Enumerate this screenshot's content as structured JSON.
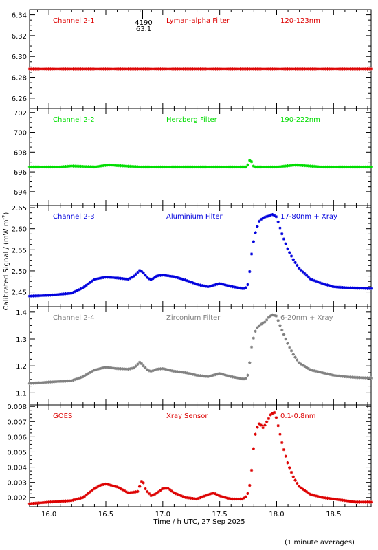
{
  "figure": {
    "ylabel": "Calibrated Signal / (mW m",
    "ylabel_sup": "-2",
    "ylabel_end": ")",
    "xlabel": "Time / h UTC, 27 Sep 2025",
    "footnote": "(1 minute averages)"
  },
  "chart_data": [
    {
      "type": "scatter",
      "channel_label": "Channel 2-1",
      "filter_label": "Lyman-alpha Filter",
      "range_label": "120-123nm",
      "color": "#dd0000",
      "xlim": [
        15.83,
        18.83
      ],
      "ylim": [
        6.25,
        6.345
      ],
      "yticks": [
        6.26,
        6.28,
        6.3,
        6.32,
        6.34
      ],
      "ytick_labels": [
        "6.26",
        "6.28",
        "6.30",
        "6.32",
        "6.34"
      ],
      "outlier_x": 16.82,
      "outlier_labels": [
        "4190",
        "63.1"
      ],
      "series": [
        {
          "x": [
            15.83,
            18.83
          ],
          "y": [
            6.288,
            6.288
          ]
        }
      ]
    },
    {
      "type": "scatter",
      "channel_label": "Channel 2-2",
      "filter_label": "Herzberg Filter",
      "range_label": "190-222nm",
      "color": "#00dd00",
      "xlim": [
        15.83,
        18.83
      ],
      "ylim": [
        692.6,
        702.4
      ],
      "yticks": [
        694,
        696,
        698,
        700,
        702
      ],
      "ytick_labels": [
        "694",
        "696",
        "698",
        "700",
        "702"
      ],
      "series": [
        {
          "x": [
            15.83,
            16.1,
            16.2,
            16.4,
            16.52,
            16.8,
            17.2,
            17.6,
            17.74,
            17.76,
            17.77,
            17.8,
            18.0,
            18.17,
            18.4,
            18.83
          ],
          "y": [
            696.5,
            696.5,
            696.6,
            696.5,
            696.7,
            696.5,
            696.5,
            696.5,
            696.5,
            697.1,
            697.3,
            696.5,
            696.5,
            696.7,
            696.5,
            696.5
          ]
        }
      ]
    },
    {
      "type": "scatter",
      "channel_label": "Channel 2-3",
      "filter_label": "Aluminium Filter",
      "range_label": "17-80nm + Xray",
      "color": "#0000dd",
      "xlim": [
        15.83,
        18.83
      ],
      "ylim": [
        2.415,
        2.655
      ],
      "yticks": [
        2.45,
        2.5,
        2.55,
        2.6,
        2.65
      ],
      "ytick_labels": [
        "2.45",
        "2.50",
        "2.55",
        "2.60",
        "2.65"
      ],
      "series": [
        {
          "x": [
            15.83,
            16.0,
            16.2,
            16.3,
            16.4,
            16.5,
            16.6,
            16.7,
            16.75,
            16.8,
            16.83,
            16.87,
            16.9,
            16.95,
            17.0,
            17.1,
            17.2,
            17.3,
            17.4,
            17.5,
            17.6,
            17.7,
            17.72,
            17.74,
            17.75,
            17.76,
            17.78,
            17.8,
            17.82,
            17.85,
            17.88,
            17.9,
            17.93,
            17.96,
            18.0,
            18.02,
            18.05,
            18.1,
            18.15,
            18.2,
            18.3,
            18.4,
            18.5,
            18.6,
            18.7,
            18.83
          ],
          "y": [
            2.44,
            2.442,
            2.447,
            2.46,
            2.48,
            2.485,
            2.483,
            2.48,
            2.488,
            2.502,
            2.495,
            2.482,
            2.479,
            2.488,
            2.49,
            2.486,
            2.478,
            2.468,
            2.462,
            2.47,
            2.463,
            2.458,
            2.458,
            2.462,
            2.47,
            2.49,
            2.54,
            2.575,
            2.598,
            2.62,
            2.625,
            2.628,
            2.63,
            2.634,
            2.628,
            2.61,
            2.585,
            2.55,
            2.525,
            2.505,
            2.48,
            2.47,
            2.462,
            2.46,
            2.459,
            2.458
          ]
        }
      ]
    },
    {
      "type": "scatter",
      "channel_label": "Channel 2-4",
      "filter_label": "Zirconium Filter",
      "range_label": "6-20nm + Xray",
      "color": "#808080",
      "xlim": [
        15.83,
        18.83
      ],
      "ylim": [
        1.055,
        1.42
      ],
      "yticks": [
        1.1,
        1.2,
        1.3,
        1.4
      ],
      "ytick_labels": [
        "1.1",
        "1.2",
        "1.3",
        "1.4"
      ],
      "series": [
        {
          "x": [
            15.83,
            16.0,
            16.2,
            16.3,
            16.4,
            16.5,
            16.6,
            16.7,
            16.75,
            16.8,
            16.83,
            16.87,
            16.9,
            16.95,
            17.0,
            17.1,
            17.2,
            17.3,
            17.4,
            17.5,
            17.6,
            17.7,
            17.72,
            17.74,
            17.75,
            17.76,
            17.78,
            17.8,
            17.82,
            17.85,
            17.88,
            17.9,
            17.93,
            17.96,
            18.0,
            18.02,
            18.05,
            18.1,
            18.15,
            18.2,
            18.3,
            18.4,
            18.5,
            18.6,
            18.7,
            18.83
          ],
          "y": [
            1.135,
            1.14,
            1.145,
            1.16,
            1.185,
            1.195,
            1.19,
            1.188,
            1.193,
            1.215,
            1.2,
            1.183,
            1.18,
            1.188,
            1.19,
            1.18,
            1.175,
            1.165,
            1.16,
            1.172,
            1.16,
            1.152,
            1.152,
            1.156,
            1.17,
            1.2,
            1.27,
            1.31,
            1.338,
            1.35,
            1.36,
            1.363,
            1.38,
            1.39,
            1.385,
            1.36,
            1.33,
            1.28,
            1.24,
            1.21,
            1.185,
            1.175,
            1.165,
            1.16,
            1.157,
            1.155
          ]
        }
      ]
    },
    {
      "type": "scatter",
      "channel_label": "GOES",
      "filter_label": "Xray Sensor",
      "range_label": "0.1-0.8nm",
      "color": "#dd0000",
      "xlim": [
        15.83,
        18.83
      ],
      "ylim": [
        0.0014,
        0.0081
      ],
      "yticks": [
        0.002,
        0.003,
        0.004,
        0.005,
        0.006,
        0.007,
        0.008
      ],
      "ytick_labels": [
        "0.002",
        "0.003",
        "0.004",
        "0.005",
        "0.006",
        "0.007",
        "0.008"
      ],
      "series": [
        {
          "x": [
            15.83,
            16.0,
            16.2,
            16.3,
            16.35,
            16.4,
            16.45,
            16.5,
            16.6,
            16.7,
            16.78,
            16.82,
            16.85,
            16.9,
            16.95,
            17.0,
            17.05,
            17.1,
            17.2,
            17.3,
            17.4,
            17.45,
            17.5,
            17.6,
            17.7,
            17.74,
            17.76,
            17.78,
            17.8,
            17.82,
            17.85,
            17.88,
            17.9,
            17.93,
            17.95,
            17.98,
            18.0,
            18.02,
            18.05,
            18.1,
            18.15,
            18.2,
            18.3,
            18.4,
            18.5,
            18.6,
            18.7,
            18.83
          ],
          "y": [
            0.0016,
            0.0017,
            0.0018,
            0.002,
            0.0023,
            0.0026,
            0.0028,
            0.0029,
            0.0027,
            0.0023,
            0.0024,
            0.0032,
            0.0025,
            0.0021,
            0.0023,
            0.0026,
            0.0026,
            0.0023,
            0.002,
            0.0019,
            0.0022,
            0.0023,
            0.0021,
            0.0019,
            0.0019,
            0.0021,
            0.0026,
            0.0038,
            0.0055,
            0.0065,
            0.0069,
            0.0066,
            0.0068,
            0.0072,
            0.0075,
            0.0076,
            0.0072,
            0.0065,
            0.0055,
            0.0042,
            0.0033,
            0.0027,
            0.0022,
            0.002,
            0.0019,
            0.0018,
            0.0017,
            0.0017
          ]
        }
      ]
    }
  ],
  "xaxis": {
    "xticks": [
      16.0,
      16.5,
      17.0,
      17.5,
      18.0,
      18.5
    ],
    "xtick_labels": [
      "16.0",
      "16.5",
      "17.0",
      "17.5",
      "18.0",
      "18.5"
    ]
  }
}
